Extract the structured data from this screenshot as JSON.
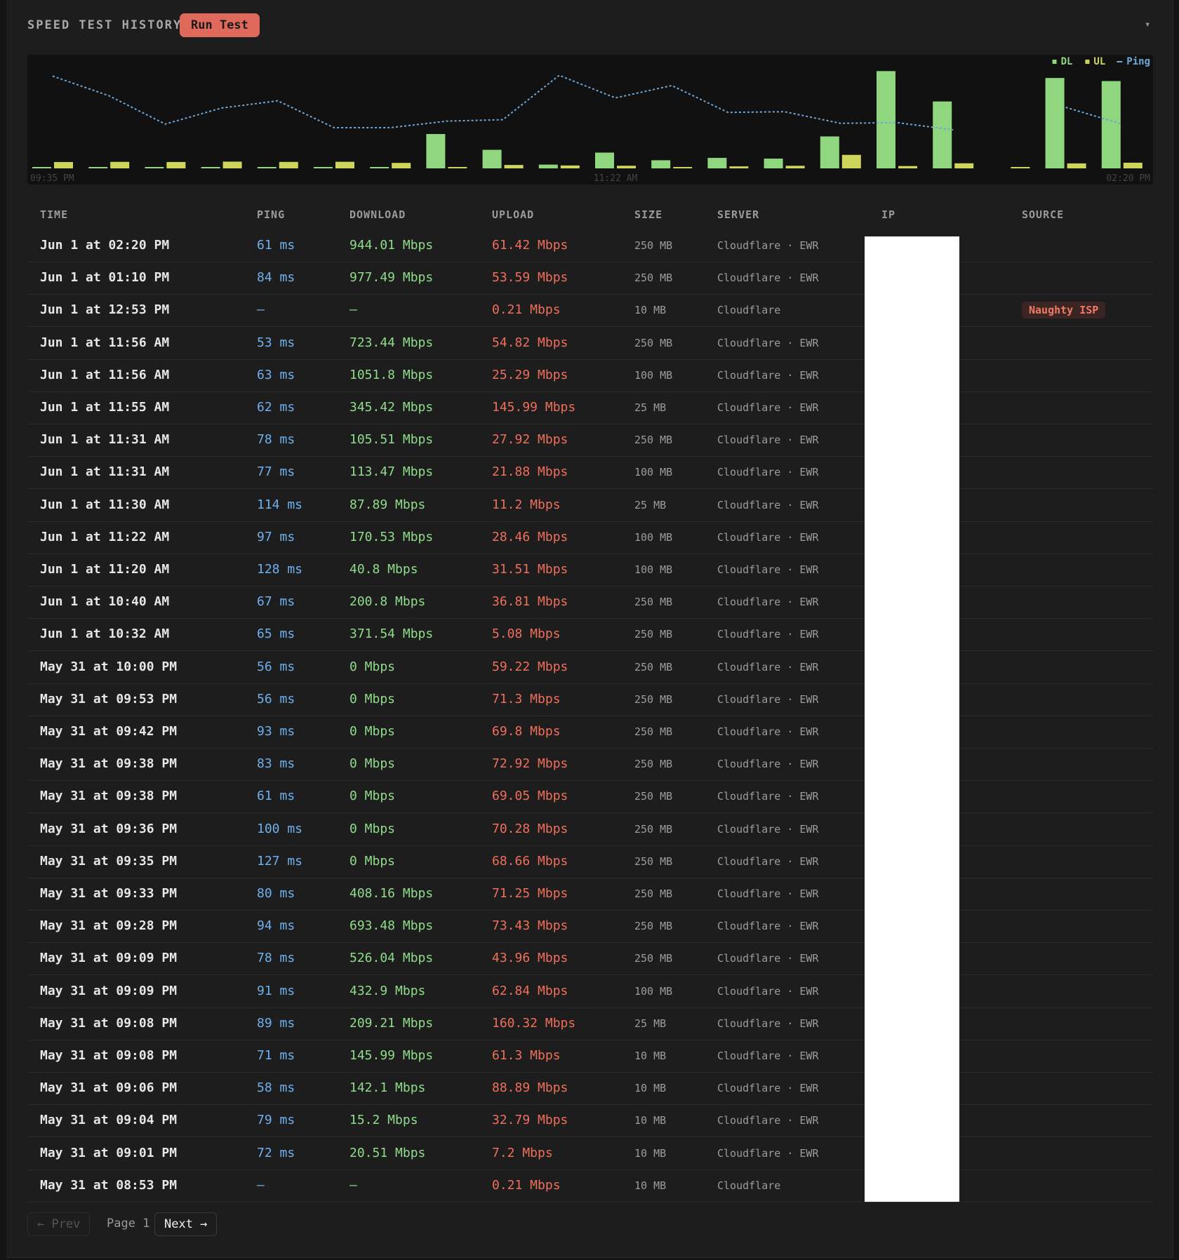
{
  "header": {
    "title": "SPEED TEST HISTORY",
    "button": "Run Test",
    "toggle": "▾"
  },
  "chart_data": {
    "type": "bar",
    "categories": [
      "09:35 PM",
      null,
      null,
      null,
      null,
      null,
      null,
      null,
      null,
      null,
      "11:22 AM",
      null,
      null,
      null,
      null,
      null,
      null,
      null,
      null,
      "02:20 PM"
    ],
    "series": [
      {
        "name": "DL",
        "color": "#8fd67f",
        "values": [
          0,
          0,
          0,
          0,
          0,
          0,
          0,
          371.54,
          200.8,
          40.8,
          170.53,
          87.89,
          113.47,
          105.51,
          345.42,
          1051.8,
          723.44,
          null,
          977.49,
          944.01
        ]
      },
      {
        "name": "UL",
        "color": "#cdd65a",
        "values": [
          68.66,
          70.28,
          69.05,
          72.92,
          69.8,
          71.3,
          59.22,
          5.08,
          36.81,
          31.51,
          28.46,
          11.2,
          21.88,
          27.92,
          145.99,
          25.29,
          54.82,
          0.21,
          53.59,
          61.42
        ]
      },
      {
        "name": "Ping",
        "color": "#6fa8d6",
        "type": "line",
        "axis": "y2",
        "values": [
          127,
          100,
          61,
          83,
          93,
          56,
          56,
          65,
          67,
          128,
          97,
          114,
          77,
          78,
          62,
          63,
          53,
          null,
          84,
          61
        ]
      }
    ],
    "ylim": [
      0,
      1100
    ],
    "y2lim": [
      0,
      140
    ],
    "legend": "top-right"
  },
  "table": {
    "columns": [
      "TIME",
      "PING",
      "DOWNLOAD",
      "UPLOAD",
      "SIZE",
      "SERVER",
      "IP",
      "SOURCE"
    ],
    "rows": [
      {
        "time": "Jun 1 at 02:20 PM",
        "ping": "61 ms",
        "download": "944.01 Mbps",
        "upload": "61.42 Mbps",
        "size": "250 MB",
        "server": "Cloudflare · EWR"
      },
      {
        "time": "Jun 1 at 01:10 PM",
        "ping": "84 ms",
        "download": "977.49 Mbps",
        "upload": "53.59 Mbps",
        "size": "250 MB",
        "server": "Cloudflare · EWR"
      },
      {
        "time": "Jun 1 at 12:53 PM",
        "ping": "—",
        "download": "—",
        "upload": "0.21 Mbps",
        "size": "10 MB",
        "server": "Cloudflare",
        "source": "Naughty ISP"
      },
      {
        "time": "Jun 1 at 11:56 AM",
        "ping": "53 ms",
        "download": "723.44 Mbps",
        "upload": "54.82 Mbps",
        "size": "250 MB",
        "server": "Cloudflare · EWR"
      },
      {
        "time": "Jun 1 at 11:56 AM",
        "ping": "63 ms",
        "download": "1051.8 Mbps",
        "upload": "25.29 Mbps",
        "size": "100 MB",
        "server": "Cloudflare · EWR"
      },
      {
        "time": "Jun 1 at 11:55 AM",
        "ping": "62 ms",
        "download": "345.42 Mbps",
        "upload": "145.99 Mbps",
        "size": "25 MB",
        "server": "Cloudflare · EWR"
      },
      {
        "time": "Jun 1 at 11:31 AM",
        "ping": "78 ms",
        "download": "105.51 Mbps",
        "upload": "27.92 Mbps",
        "size": "250 MB",
        "server": "Cloudflare · EWR"
      },
      {
        "time": "Jun 1 at 11:31 AM",
        "ping": "77 ms",
        "download": "113.47 Mbps",
        "upload": "21.88 Mbps",
        "size": "100 MB",
        "server": "Cloudflare · EWR"
      },
      {
        "time": "Jun 1 at 11:30 AM",
        "ping": "114 ms",
        "download": "87.89 Mbps",
        "upload": "11.2 Mbps",
        "size": "25 MB",
        "server": "Cloudflare · EWR"
      },
      {
        "time": "Jun 1 at 11:22 AM",
        "ping": "97 ms",
        "download": "170.53 Mbps",
        "upload": "28.46 Mbps",
        "size": "100 MB",
        "server": "Cloudflare · EWR"
      },
      {
        "time": "Jun 1 at 11:20 AM",
        "ping": "128 ms",
        "download": "40.8 Mbps",
        "upload": "31.51 Mbps",
        "size": "100 MB",
        "server": "Cloudflare · EWR"
      },
      {
        "time": "Jun 1 at 10:40 AM",
        "ping": "67 ms",
        "download": "200.8 Mbps",
        "upload": "36.81 Mbps",
        "size": "250 MB",
        "server": "Cloudflare · EWR"
      },
      {
        "time": "Jun 1 at 10:32 AM",
        "ping": "65 ms",
        "download": "371.54 Mbps",
        "upload": "5.08 Mbps",
        "size": "250 MB",
        "server": "Cloudflare · EWR"
      },
      {
        "time": "May 31 at 10:00 PM",
        "ping": "56 ms",
        "download": "0 Mbps",
        "upload": "59.22 Mbps",
        "size": "250 MB",
        "server": "Cloudflare · EWR"
      },
      {
        "time": "May 31 at 09:53 PM",
        "ping": "56 ms",
        "download": "0 Mbps",
        "upload": "71.3 Mbps",
        "size": "250 MB",
        "server": "Cloudflare · EWR"
      },
      {
        "time": "May 31 at 09:42 PM",
        "ping": "93 ms",
        "download": "0 Mbps",
        "upload": "69.8 Mbps",
        "size": "250 MB",
        "server": "Cloudflare · EWR"
      },
      {
        "time": "May 31 at 09:38 PM",
        "ping": "83 ms",
        "download": "0 Mbps",
        "upload": "72.92 Mbps",
        "size": "250 MB",
        "server": "Cloudflare · EWR"
      },
      {
        "time": "May 31 at 09:38 PM",
        "ping": "61 ms",
        "download": "0 Mbps",
        "upload": "69.05 Mbps",
        "size": "250 MB",
        "server": "Cloudflare · EWR"
      },
      {
        "time": "May 31 at 09:36 PM",
        "ping": "100 ms",
        "download": "0 Mbps",
        "upload": "70.28 Mbps",
        "size": "250 MB",
        "server": "Cloudflare · EWR"
      },
      {
        "time": "May 31 at 09:35 PM",
        "ping": "127 ms",
        "download": "0 Mbps",
        "upload": "68.66 Mbps",
        "size": "250 MB",
        "server": "Cloudflare · EWR"
      },
      {
        "time": "May 31 at 09:33 PM",
        "ping": "80 ms",
        "download": "408.16 Mbps",
        "upload": "71.25 Mbps",
        "size": "250 MB",
        "server": "Cloudflare · EWR"
      },
      {
        "time": "May 31 at 09:28 PM",
        "ping": "94 ms",
        "download": "693.48 Mbps",
        "upload": "73.43 Mbps",
        "size": "250 MB",
        "server": "Cloudflare · EWR"
      },
      {
        "time": "May 31 at 09:09 PM",
        "ping": "78 ms",
        "download": "526.04 Mbps",
        "upload": "43.96 Mbps",
        "size": "250 MB",
        "server": "Cloudflare · EWR"
      },
      {
        "time": "May 31 at 09:09 PM",
        "ping": "91 ms",
        "download": "432.9 Mbps",
        "upload": "62.84 Mbps",
        "size": "100 MB",
        "server": "Cloudflare · EWR"
      },
      {
        "time": "May 31 at 09:08 PM",
        "ping": "89 ms",
        "download": "209.21 Mbps",
        "upload": "160.32 Mbps",
        "size": "25 MB",
        "server": "Cloudflare · EWR"
      },
      {
        "time": "May 31 at 09:08 PM",
        "ping": "71 ms",
        "download": "145.99 Mbps",
        "upload": "61.3 Mbps",
        "size": "10 MB",
        "server": "Cloudflare · EWR"
      },
      {
        "time": "May 31 at 09:06 PM",
        "ping": "58 ms",
        "download": "142.1 Mbps",
        "upload": "88.89 Mbps",
        "size": "10 MB",
        "server": "Cloudflare · EWR"
      },
      {
        "time": "May 31 at 09:04 PM",
        "ping": "79 ms",
        "download": "15.2 Mbps",
        "upload": "32.79 Mbps",
        "size": "10 MB",
        "server": "Cloudflare · EWR"
      },
      {
        "time": "May 31 at 09:01 PM",
        "ping": "72 ms",
        "download": "20.51 Mbps",
        "upload": "7.2 Mbps",
        "size": "10 MB",
        "server": "Cloudflare · EWR"
      },
      {
        "time": "May 31 at 08:53 PM",
        "ping": "—",
        "download": "—",
        "upload": "0.21 Mbps",
        "size": "10 MB",
        "server": "Cloudflare"
      }
    ]
  },
  "pagination": {
    "prev": "← Prev",
    "page": "Page 1",
    "next": "Next →"
  }
}
